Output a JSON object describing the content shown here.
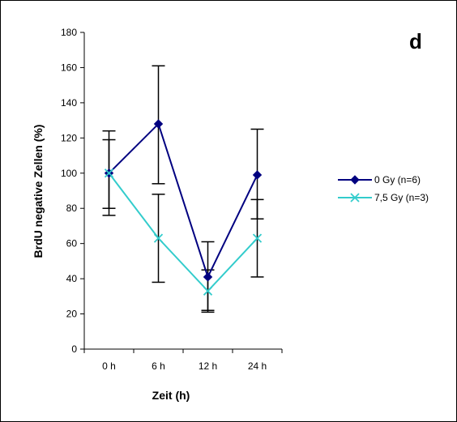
{
  "panel_label": "d",
  "chart_data": {
    "type": "line",
    "title": "",
    "xlabel": "Zeit (h)",
    "ylabel": "BrdU negative Zellen (%)",
    "categories": [
      "0 h",
      "6 h",
      "12 h",
      "24 h"
    ],
    "ylim": [
      0,
      180
    ],
    "yticks": [
      0,
      20,
      40,
      60,
      80,
      100,
      120,
      140,
      160,
      180
    ],
    "grid": false,
    "legend_position": "right",
    "series": [
      {
        "name": "0 Gy (n=6)",
        "color": "#000080",
        "marker": "diamond",
        "values": [
          100,
          128,
          41,
          99
        ],
        "err_low": [
          76,
          94,
          21,
          74
        ],
        "err_high": [
          124,
          161,
          61,
          125
        ]
      },
      {
        "name": "7,5 Gy (n=3)",
        "color": "#33CCCC",
        "marker": "x",
        "values": [
          100,
          63,
          33,
          63
        ],
        "err_low": [
          80,
          38,
          22,
          41
        ],
        "err_high": [
          119,
          88,
          45,
          85
        ]
      }
    ]
  }
}
